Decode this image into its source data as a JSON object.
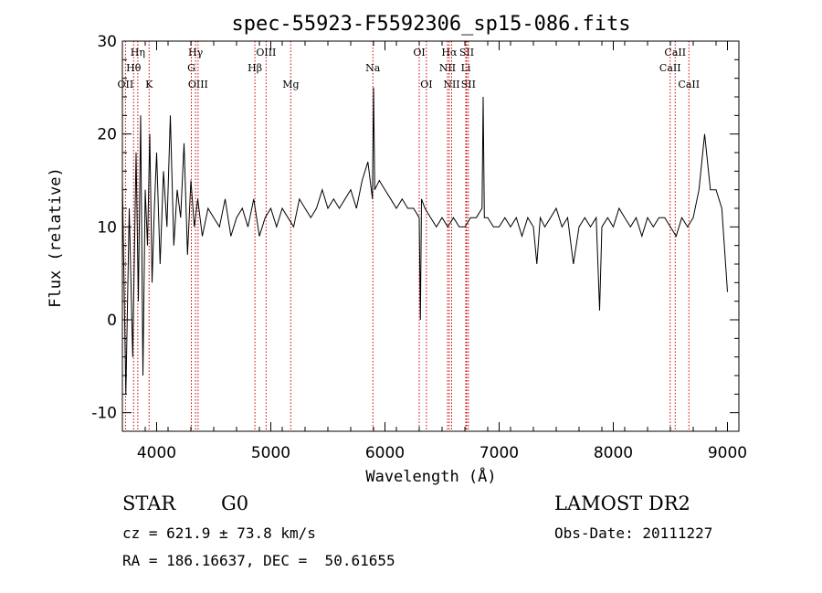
{
  "chart_data": {
    "type": "line",
    "title": "spec-55923-F5592306_sp15-086.fits",
    "xlabel": "Wavelength (Å)",
    "ylabel": "Flux (relative)",
    "xlim": [
      3700,
      9100
    ],
    "ylim": [
      -12,
      30
    ],
    "xticks": [
      4000,
      5000,
      6000,
      7000,
      8000,
      9000
    ],
    "yticks": [
      -10,
      0,
      10,
      20,
      30
    ],
    "grid": false,
    "line_color": "#000000",
    "marker_color": "#cc0000",
    "series": [
      {
        "x": [
          3700,
          3730,
          3760,
          3790,
          3820,
          3840,
          3860,
          3880,
          3900,
          3920,
          3940,
          3960,
          3980,
          4000,
          4030,
          4060,
          4090,
          4120,
          4150,
          4180,
          4210,
          4240,
          4270,
          4300,
          4330,
          4360,
          4400,
          4450,
          4500,
          4550,
          4600,
          4650,
          4700,
          4750,
          4800,
          4850,
          4900,
          4950,
          5000,
          5050,
          5100,
          5150,
          5200,
          5250,
          5300,
          5350,
          5400,
          5450,
          5500,
          5550,
          5600,
          5650,
          5700,
          5750,
          5800,
          5850,
          5890,
          5900,
          5910,
          5950,
          6000,
          6050,
          6100,
          6150,
          6200,
          6250,
          6300,
          6310,
          6320,
          6350,
          6400,
          6450,
          6500,
          6550,
          6600,
          6650,
          6700,
          6750,
          6800,
          6850,
          6860,
          6870,
          6900,
          6950,
          7000,
          7050,
          7100,
          7150,
          7200,
          7250,
          7300,
          7330,
          7360,
          7400,
          7450,
          7500,
          7550,
          7600,
          7650,
          7700,
          7750,
          7800,
          7850,
          7880,
          7900,
          7950,
          8000,
          8050,
          8100,
          8150,
          8200,
          8250,
          8300,
          8350,
          8400,
          8450,
          8500,
          8550,
          8600,
          8650,
          8700,
          8750,
          8800,
          8850,
          8900,
          8950,
          9000
        ],
        "y": [
          15,
          -8,
          12,
          -4,
          18,
          2,
          22,
          -6,
          14,
          8,
          20,
          4,
          12,
          18,
          6,
          16,
          10,
          22,
          8,
          14,
          11,
          19,
          7,
          15,
          10,
          13,
          9,
          12,
          11,
          10,
          13,
          9,
          11,
          12,
          10,
          13,
          9,
          11,
          12,
          10,
          12,
          11,
          10,
          13,
          12,
          11,
          12,
          14,
          12,
          13,
          12,
          13,
          14,
          12,
          15,
          17,
          13,
          25,
          14,
          15,
          14,
          13,
          12,
          13,
          12,
          12,
          11,
          0,
          13,
          12,
          11,
          10,
          11,
          10,
          11,
          10,
          10,
          11,
          11,
          12,
          24,
          11,
          11,
          10,
          10,
          11,
          10,
          11,
          9,
          11,
          10,
          6,
          11,
          10,
          11,
          12,
          10,
          11,
          6,
          10,
          11,
          10,
          11,
          1,
          10,
          11,
          10,
          12,
          11,
          10,
          11,
          9,
          11,
          10,
          11,
          11,
          10,
          9,
          11,
          10,
          11,
          14,
          20,
          14,
          14,
          12,
          3
        ]
      }
    ],
    "line_markers": [
      {
        "label": "OII",
        "x": 3727,
        "row": 3
      },
      {
        "label": "Hη",
        "x": 3835,
        "row": 1
      },
      {
        "label": "Hθ",
        "x": 3798,
        "row": 2
      },
      {
        "label": "K",
        "x": 3934,
        "row": 3
      },
      {
        "label": "Hγ",
        "x": 4341,
        "row": 1
      },
      {
        "label": "G",
        "x": 4304,
        "row": 2
      },
      {
        "label": "OIII",
        "x": 4363,
        "row": 3
      },
      {
        "label": "OIII",
        "x": 4959,
        "row": 1
      },
      {
        "label": "Hβ",
        "x": 4861,
        "row": 2
      },
      {
        "label": "Mg",
        "x": 5175,
        "row": 3
      },
      {
        "label": "Na",
        "x": 5894,
        "row": 2
      },
      {
        "label": "OI",
        "x": 6300,
        "row": 1
      },
      {
        "label": "OI",
        "x": 6363,
        "row": 3
      },
      {
        "label": "Hα",
        "x": 6563,
        "row": 1
      },
      {
        "label": "SII",
        "x": 6716,
        "row": 1
      },
      {
        "label": "NII",
        "x": 6548,
        "row": 2
      },
      {
        "label": "Li",
        "x": 6708,
        "row": 2
      },
      {
        "label": "NII",
        "x": 6584,
        "row": 3
      },
      {
        "label": "SII",
        "x": 6731,
        "row": 3
      },
      {
        "label": "CaII",
        "x": 8542,
        "row": 1
      },
      {
        "label": "CaII",
        "x": 8498,
        "row": 2
      },
      {
        "label": "CaII",
        "x": 8662,
        "row": 3
      }
    ]
  },
  "info": {
    "class": "STAR",
    "subclass": "G0",
    "survey": "LAMOST DR2",
    "cz": "cz = 621.9 ± 73.8 km/s",
    "obs_date": "Obs-Date: 20111227",
    "coords": "RA = 186.16637, DEC =  50.61655"
  }
}
